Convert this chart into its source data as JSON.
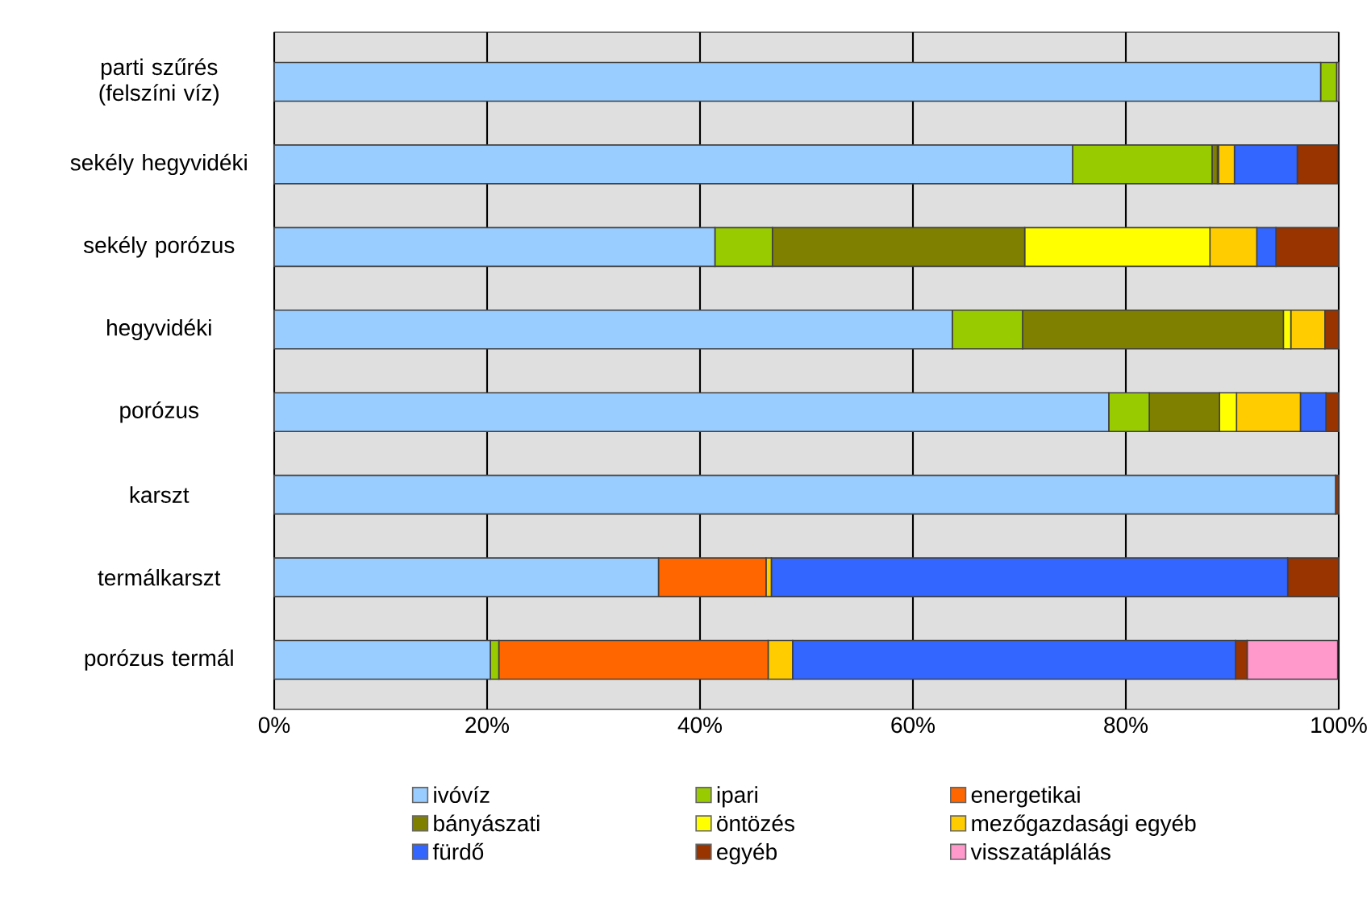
{
  "chart_data": {
    "type": "bar",
    "orientation": "horizontal",
    "stacked": true,
    "grid": "x",
    "legend": "bottom",
    "categories": [
      "parti szűrés (felszíni víz)",
      "sekély hegyvidéki",
      "sekély porózus",
      "hegyvidéki",
      "porózus",
      "karszt",
      "termálkarszt",
      "porózus termál"
    ],
    "xlim": [
      0,
      100
    ],
    "xticks": [
      {
        "value": 0,
        "label": "0%"
      },
      {
        "value": 20,
        "label": "20%"
      },
      {
        "value": 40,
        "label": "40%"
      },
      {
        "value": 60,
        "label": "60%"
      },
      {
        "value": 80,
        "label": "80%"
      },
      {
        "value": 100,
        "label": "100%"
      }
    ],
    "series": [
      {
        "name": "ivóvíz",
        "color": "#99ccff",
        "values": [
          98.3,
          75.0,
          41.4,
          63.7,
          78.4,
          99.7,
          36.1,
          20.3
        ]
      },
      {
        "name": "ipari",
        "color": "#99cc00",
        "values": [
          1.5,
          13.1,
          5.4,
          6.6,
          3.8,
          0,
          0,
          0.8
        ]
      },
      {
        "name": "energetikai",
        "color": "#ff6600",
        "values": [
          0,
          0,
          0,
          0,
          0,
          0,
          10.1,
          25.3
        ]
      },
      {
        "name": "bányászati",
        "color": "#808000",
        "values": [
          0,
          0.5,
          23.7,
          24.5,
          6.6,
          0,
          0,
          0
        ]
      },
      {
        "name": "öntözés",
        "color": "#ffff00",
        "values": [
          0,
          0.1,
          17.4,
          0.7,
          1.6,
          0,
          0,
          0
        ]
      },
      {
        "name": "mezőgazdasági egyéb",
        "color": "#ffcc00",
        "values": [
          0,
          1.5,
          4.4,
          3.2,
          6.0,
          0,
          0.5,
          2.3
        ]
      },
      {
        "name": "fürdő",
        "color": "#3366ff",
        "values": [
          0,
          5.9,
          1.8,
          0,
          2.4,
          0,
          48.5,
          41.6
        ]
      },
      {
        "name": "egyéb",
        "color": "#993300",
        "values": [
          0,
          3.8,
          5.9,
          1.3,
          1.2,
          0.3,
          4.8,
          1.1
        ]
      },
      {
        "name": "visszatáplálás",
        "color": "#ff99cc",
        "values": [
          0.2,
          0,
          0,
          0,
          0,
          0,
          0,
          8.5
        ]
      }
    ]
  }
}
